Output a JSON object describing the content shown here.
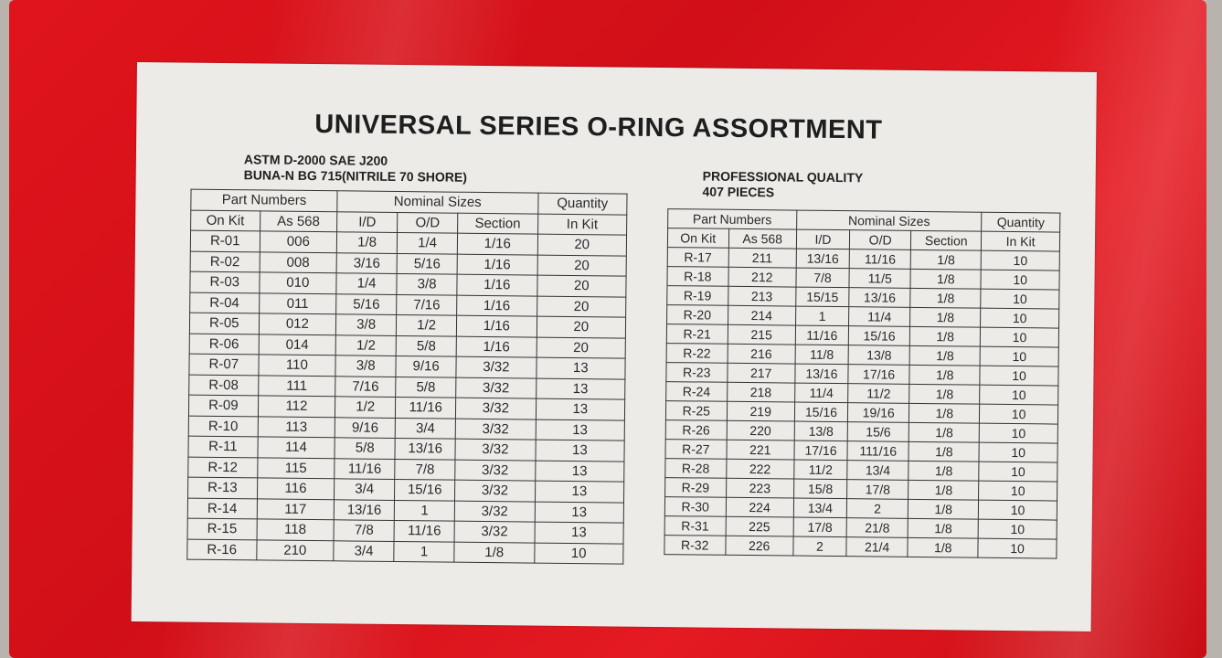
{
  "title": "UNIVERSAL SERIES O-RING ASSORTMENT",
  "left_info": [
    "ASTM D-2000 SAE J200",
    "BUNA-N BG 715(NITRILE 70 SHORE)"
  ],
  "right_info": [
    "PROFESSIONAL QUALITY",
    "407 PIECES"
  ],
  "headers": {
    "part_numbers": "Part Numbers",
    "nominal_sizes": "Nominal Sizes",
    "quantity": "Quantity",
    "on_kit": "On Kit",
    "as568": "As 568",
    "id": "I/D",
    "od": "O/D",
    "section": "Section",
    "in_kit": "In Kit"
  },
  "left_rows": [
    [
      "R-01",
      "006",
      "1/8",
      "1/4",
      "1/16",
      "20"
    ],
    [
      "R-02",
      "008",
      "3/16",
      "5/16",
      "1/16",
      "20"
    ],
    [
      "R-03",
      "010",
      "1/4",
      "3/8",
      "1/16",
      "20"
    ],
    [
      "R-04",
      "011",
      "5/16",
      "7/16",
      "1/16",
      "20"
    ],
    [
      "R-05",
      "012",
      "3/8",
      "1/2",
      "1/16",
      "20"
    ],
    [
      "R-06",
      "014",
      "1/2",
      "5/8",
      "1/16",
      "20"
    ],
    [
      "R-07",
      "110",
      "3/8",
      "9/16",
      "3/32",
      "13"
    ],
    [
      "R-08",
      "111",
      "7/16",
      "5/8",
      "3/32",
      "13"
    ],
    [
      "R-09",
      "112",
      "1/2",
      "11/16",
      "3/32",
      "13"
    ],
    [
      "R-10",
      "113",
      "9/16",
      "3/4",
      "3/32",
      "13"
    ],
    [
      "R-11",
      "114",
      "5/8",
      "13/16",
      "3/32",
      "13"
    ],
    [
      "R-12",
      "115",
      "11/16",
      "7/8",
      "3/32",
      "13"
    ],
    [
      "R-13",
      "116",
      "3/4",
      "15/16",
      "3/32",
      "13"
    ],
    [
      "R-14",
      "117",
      "13/16",
      "1",
      "3/32",
      "13"
    ],
    [
      "R-15",
      "118",
      "7/8",
      "11/16",
      "3/32",
      "13"
    ],
    [
      "R-16",
      "210",
      "3/4",
      "1",
      "1/8",
      "10"
    ]
  ],
  "right_rows": [
    [
      "R-17",
      "211",
      "13/16",
      "11/16",
      "1/8",
      "10"
    ],
    [
      "R-18",
      "212",
      "7/8",
      "11/5",
      "1/8",
      "10"
    ],
    [
      "R-19",
      "213",
      "15/15",
      "13/16",
      "1/8",
      "10"
    ],
    [
      "R-20",
      "214",
      "1",
      "11/4",
      "1/8",
      "10"
    ],
    [
      "R-21",
      "215",
      "11/16",
      "15/16",
      "1/8",
      "10"
    ],
    [
      "R-22",
      "216",
      "11/8",
      "13/8",
      "1/8",
      "10"
    ],
    [
      "R-23",
      "217",
      "13/16",
      "17/16",
      "1/8",
      "10"
    ],
    [
      "R-24",
      "218",
      "11/4",
      "11/2",
      "1/8",
      "10"
    ],
    [
      "R-25",
      "219",
      "15/16",
      "19/16",
      "1/8",
      "10"
    ],
    [
      "R-26",
      "220",
      "13/8",
      "15/6",
      "1/8",
      "10"
    ],
    [
      "R-27",
      "221",
      "17/16",
      "111/16",
      "1/8",
      "10"
    ],
    [
      "R-28",
      "222",
      "11/2",
      "13/4",
      "1/8",
      "10"
    ],
    [
      "R-29",
      "223",
      "15/8",
      "17/8",
      "1/8",
      "10"
    ],
    [
      "R-30",
      "224",
      "13/4",
      "2",
      "1/8",
      "10"
    ],
    [
      "R-31",
      "225",
      "17/8",
      "21/8",
      "1/8",
      "10"
    ],
    [
      "R-32",
      "226",
      "2",
      "21/4",
      "1/8",
      "10"
    ]
  ]
}
